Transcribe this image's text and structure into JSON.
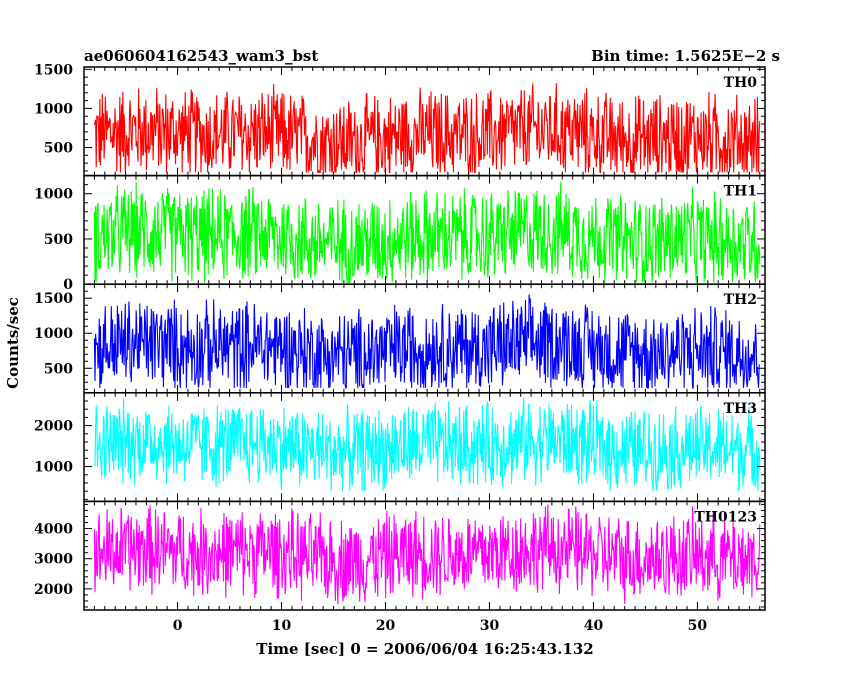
{
  "header": {
    "left_title": "ae060604162543_wam3_bst",
    "right_title": "Bin time: 1.5625E−2 s"
  },
  "chart_data": {
    "type": "line",
    "xlabel": "Time [sec] 0 = 2006/06/04 16:25:43.132",
    "ylabel": "Counts/sec",
    "xlim": [
      -9,
      56.5
    ],
    "x_start": -8,
    "x_end": 56,
    "xticks": [
      0,
      10,
      20,
      30,
      40,
      50
    ],
    "panels": [
      {
        "name": "TH0",
        "color": "#ff0000",
        "ylim": [
          140,
          1530
        ],
        "yticks": [
          500,
          1000,
          1500
        ],
        "mean": 650,
        "range_low": 180,
        "range_high": 1500
      },
      {
        "name": "TH1",
        "color": "#00ff00",
        "ylim": [
          0,
          1200
        ],
        "yticks": [
          0,
          500,
          1000
        ],
        "mean": 520,
        "range_low": 20,
        "range_high": 1200
      },
      {
        "name": "TH2",
        "color": "#0000ff",
        "ylim": [
          150,
          1700
        ],
        "yticks": [
          500,
          1000,
          1500
        ],
        "mean": 780,
        "range_low": 220,
        "range_high": 1700
      },
      {
        "name": "TH3",
        "color": "#00ffff",
        "ylim": [
          150,
          2800
        ],
        "yticks": [
          1000,
          2000
        ],
        "mean": 1500,
        "range_low": 400,
        "range_high": 2750
      },
      {
        "name": "TH0123",
        "color": "#ff00ff",
        "ylim": [
          1300,
          4900
        ],
        "yticks": [
          2000,
          3000,
          4000
        ],
        "mean": 3150,
        "range_low": 1500,
        "range_high": 4800
      }
    ]
  }
}
